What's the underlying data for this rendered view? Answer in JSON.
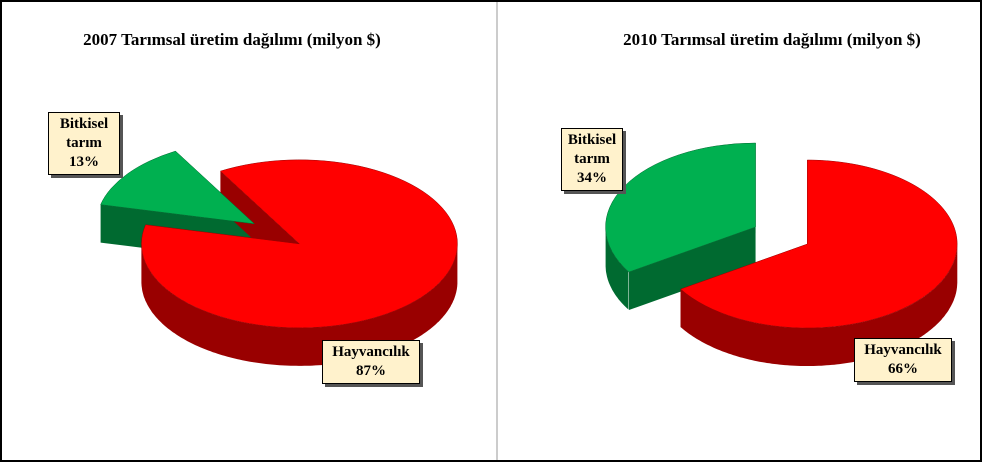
{
  "chart_data": [
    {
      "type": "pie",
      "title": "2007 Tarımsal üretim dağılımı (milyon $)",
      "categories": [
        "Bitkisel tarım",
        "Hayvancılık"
      ],
      "values": [
        13,
        87
      ],
      "value_labels": [
        "13%",
        "87%"
      ],
      "colors": [
        "#00b050",
        "#ff0000"
      ]
    },
    {
      "type": "pie",
      "title": "2010 Tarımsal üretim dağılımı (milyon $)",
      "categories": [
        "Bitkisel tarım",
        "Hayvancılık"
      ],
      "values": [
        34,
        66
      ],
      "value_labels": [
        "34%",
        "66%"
      ],
      "colors": [
        "#00b050",
        "#ff0000"
      ]
    }
  ]
}
